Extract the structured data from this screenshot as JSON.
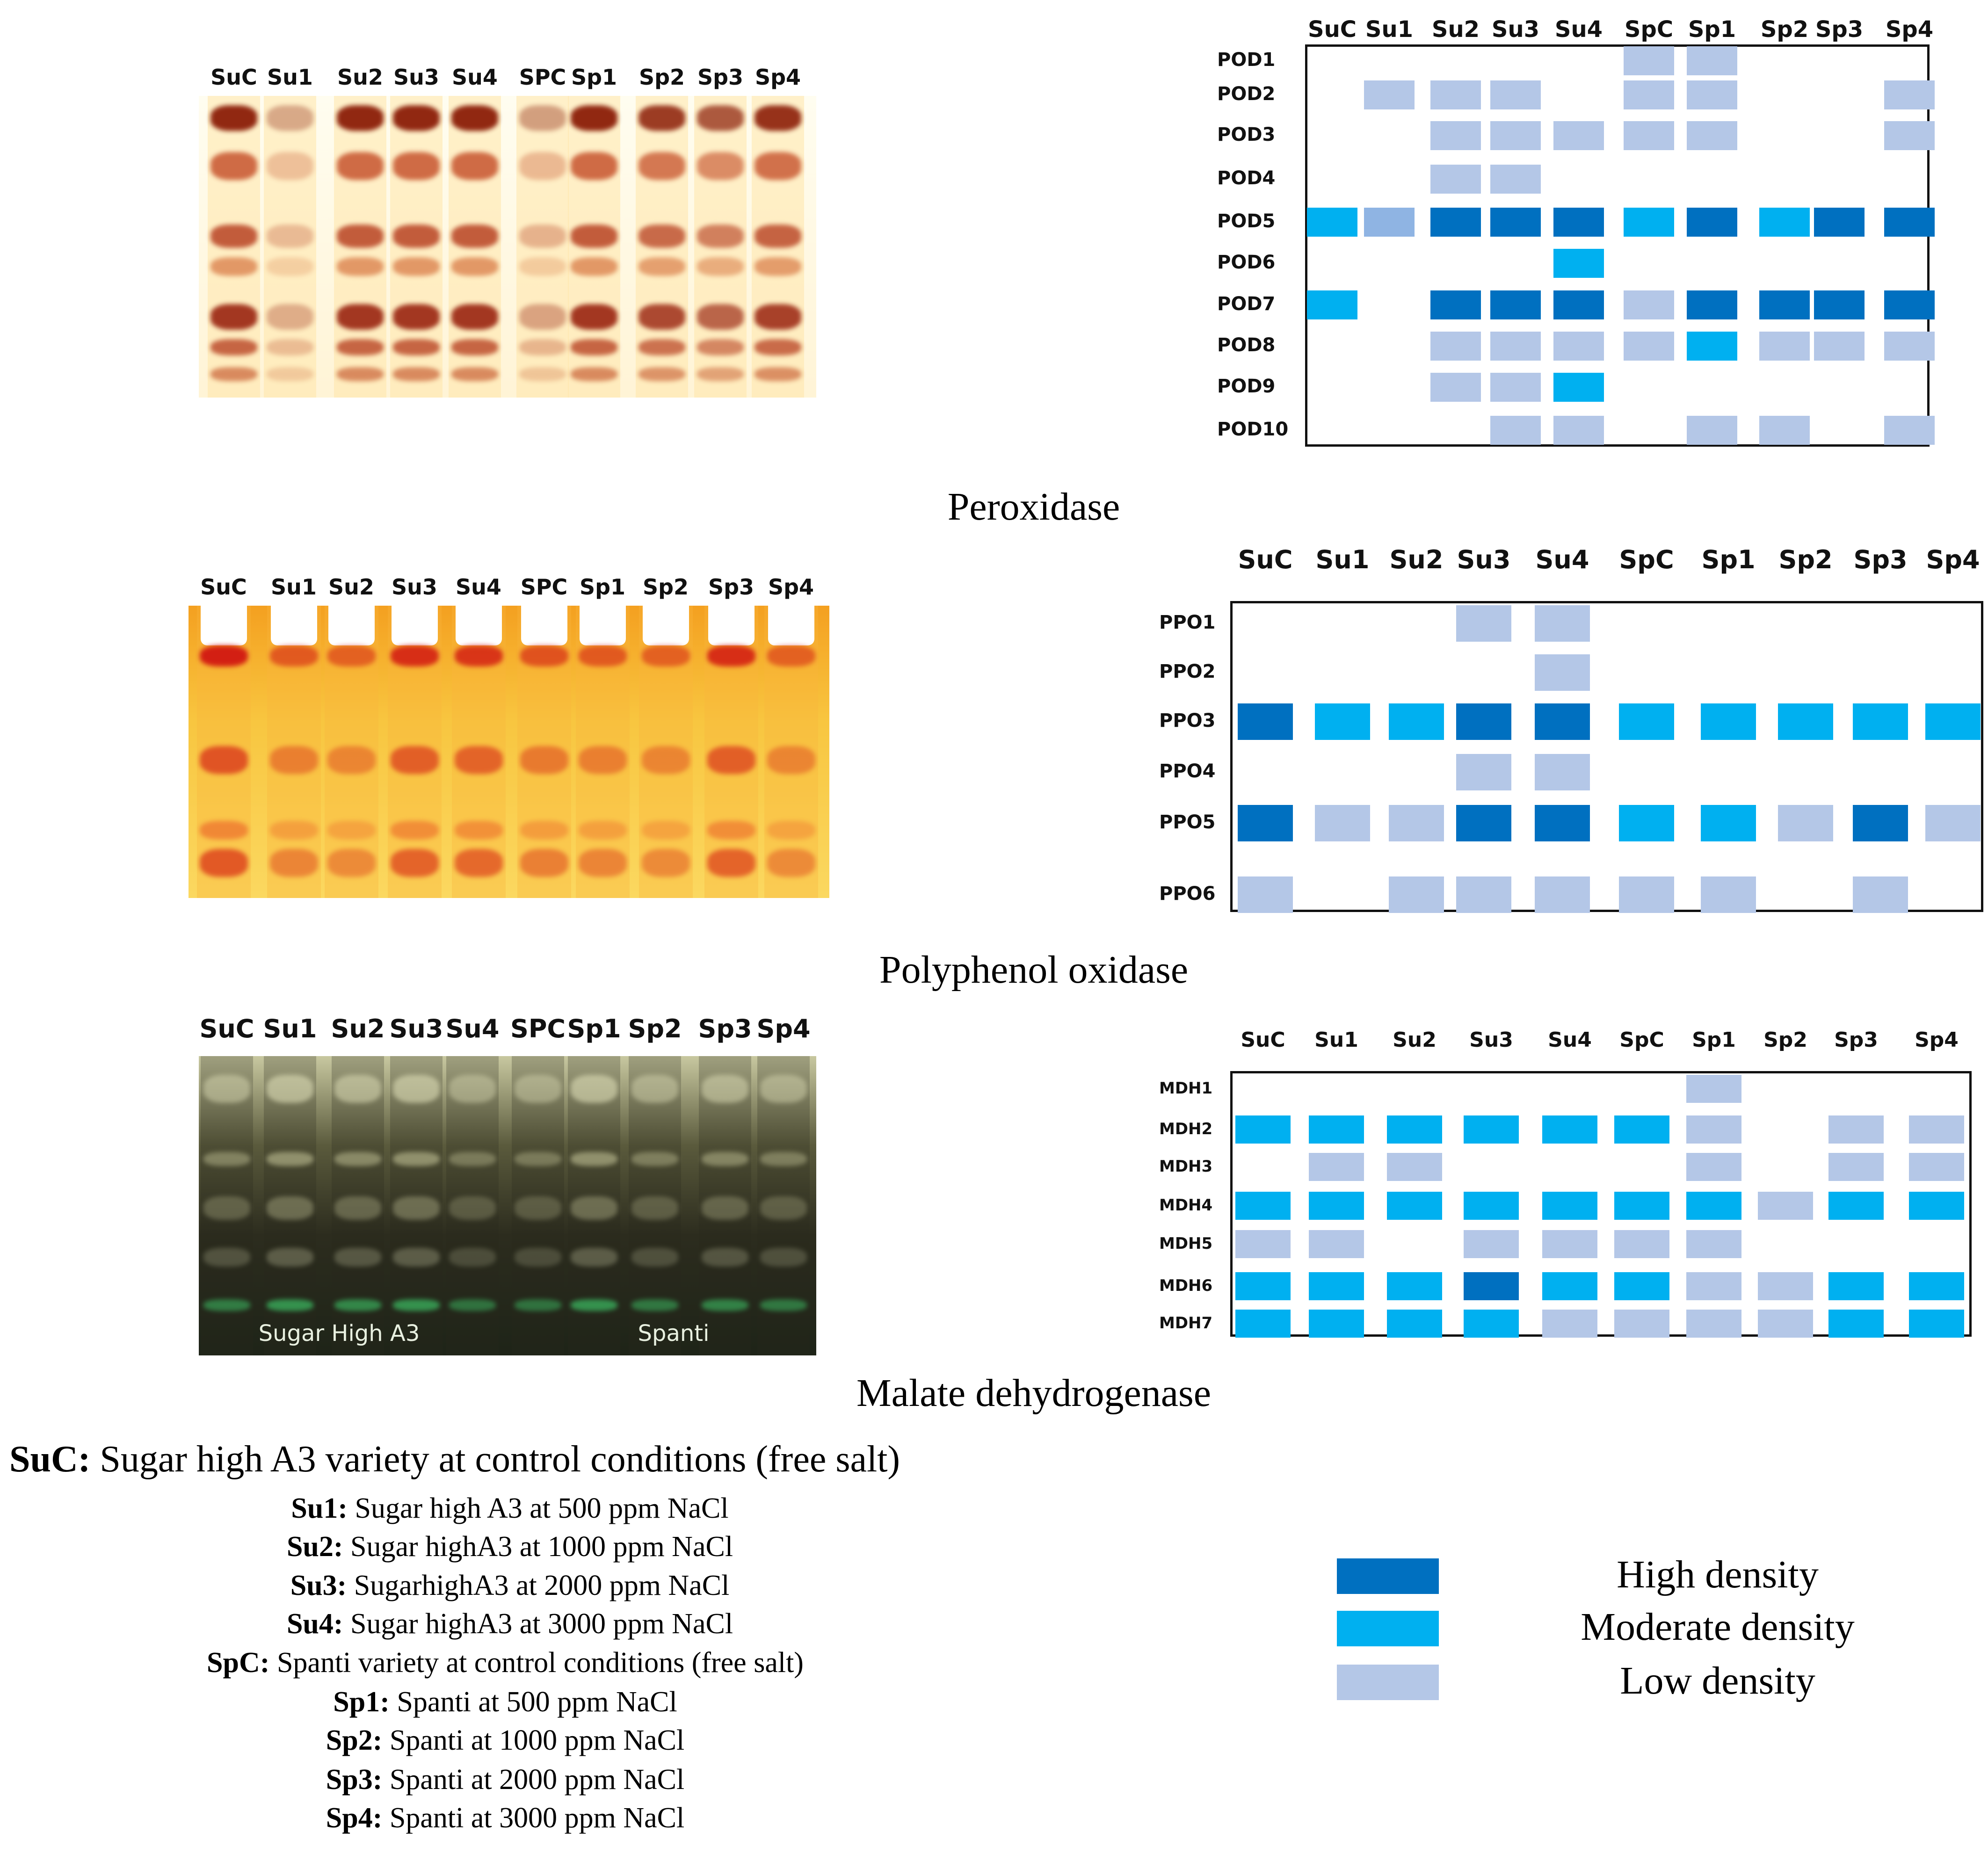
{
  "panels": [
    {
      "id": "pod",
      "caption": "Peroxidase",
      "gel_lanes": [
        "SuC",
        "Su1",
        "Su2",
        "Su3",
        "Su4",
        "SPC",
        "Sp1",
        "Sp2",
        "Sp3",
        "Sp4"
      ],
      "grid_columns": [
        "SuC",
        "Su1",
        "Su2",
        "Su3",
        "Su4",
        "SpC",
        "Sp1",
        "Sp2",
        "Sp3",
        "Sp4"
      ],
      "rows": [
        {
          "label": "POD1",
          "cells": [
            0,
            0,
            0,
            0,
            0,
            1,
            1,
            0,
            0,
            0
          ]
        },
        {
          "label": "POD2",
          "cells": [
            0,
            1,
            1,
            1,
            0,
            1,
            1,
            0,
            0,
            1
          ]
        },
        {
          "label": "POD3",
          "cells": [
            0,
            0,
            1,
            1,
            1,
            1,
            1,
            0,
            0,
            1
          ]
        },
        {
          "label": "POD4",
          "cells": [
            0,
            0,
            1,
            1,
            0,
            0,
            0,
            0,
            0,
            0
          ]
        },
        {
          "label": "POD5",
          "cells": [
            2,
            1,
            3,
            3,
            3,
            2,
            3,
            2,
            3,
            3
          ]
        },
        {
          "label": "POD6",
          "cells": [
            0,
            0,
            0,
            0,
            2,
            0,
            0,
            0,
            0,
            0
          ]
        },
        {
          "label": "POD7",
          "cells": [
            2,
            0,
            3,
            3,
            3,
            1,
            3,
            3,
            3,
            3
          ]
        },
        {
          "label": "POD8",
          "cells": [
            0,
            0,
            1,
            1,
            1,
            1,
            2,
            1,
            1,
            1
          ]
        },
        {
          "label": "POD9",
          "cells": [
            0,
            0,
            1,
            1,
            2,
            0,
            0,
            0,
            0,
            0
          ]
        },
        {
          "label": "POD10",
          "cells": [
            0,
            0,
            0,
            1,
            1,
            0,
            1,
            1,
            0,
            1
          ]
        }
      ]
    },
    {
      "id": "ppo",
      "caption": "Polyphenol oxidase",
      "gel_lanes": [
        "SuC",
        "Su1",
        "Su2",
        "Su3",
        "Su4",
        "SPC",
        "Sp1",
        "Sp2",
        "Sp3",
        "Sp4"
      ],
      "grid_columns": [
        "SuC",
        "Su1",
        "Su2",
        "Su3",
        "Su4",
        "SpC",
        "Sp1",
        "Sp2",
        "Sp3",
        "Sp4"
      ],
      "rows": [
        {
          "label": "PPO1",
          "cells": [
            0,
            0,
            0,
            1,
            1,
            0,
            0,
            0,
            0,
            0
          ]
        },
        {
          "label": "PPO2",
          "cells": [
            0,
            0,
            0,
            0,
            1,
            0,
            0,
            0,
            0,
            0
          ]
        },
        {
          "label": "PPO3",
          "cells": [
            3,
            2,
            2,
            3,
            3,
            2,
            2,
            2,
            2,
            2
          ]
        },
        {
          "label": "PPO4",
          "cells": [
            0,
            0,
            0,
            1,
            1,
            0,
            0,
            0,
            0,
            0
          ]
        },
        {
          "label": "PPO5",
          "cells": [
            3,
            1,
            1,
            3,
            3,
            2,
            2,
            1,
            3,
            1
          ]
        },
        {
          "label": "PPO6",
          "cells": [
            1,
            0,
            1,
            1,
            1,
            1,
            1,
            0,
            1,
            0
          ]
        }
      ]
    },
    {
      "id": "mdh",
      "caption": "Malate dehydrogenase",
      "gel_lanes": [
        "SuC",
        "Su1",
        "Su2",
        "Su3",
        "Su4",
        "SPC",
        "Sp1",
        "Sp2",
        "Sp3",
        "Sp4"
      ],
      "grid_columns": [
        "SuC",
        "Su1",
        "Su2",
        "Su3",
        "Su4",
        "SpC",
        "Sp1",
        "Sp2",
        "Sp3",
        "Sp4"
      ],
      "gel_annotations": [
        "Sugar High A3",
        "Spanti"
      ],
      "rows": [
        {
          "label": "MDH1",
          "cells": [
            0,
            0,
            0,
            0,
            0,
            0,
            1,
            0,
            0,
            0
          ]
        },
        {
          "label": "MDH2",
          "cells": [
            2,
            2,
            2,
            2,
            2,
            2,
            1,
            0,
            1,
            1
          ]
        },
        {
          "label": "MDH3",
          "cells": [
            0,
            1,
            1,
            0,
            0,
            0,
            1,
            0,
            1,
            1
          ]
        },
        {
          "label": "MDH4",
          "cells": [
            2,
            2,
            2,
            2,
            2,
            2,
            2,
            1,
            2,
            2
          ]
        },
        {
          "label": "MDH5",
          "cells": [
            1,
            1,
            0,
            1,
            1,
            1,
            1,
            0,
            0,
            0
          ]
        },
        {
          "label": "MDH6",
          "cells": [
            2,
            2,
            2,
            3,
            2,
            2,
            1,
            1,
            2,
            2
          ]
        },
        {
          "label": "MDH7",
          "cells": [
            2,
            2,
            2,
            2,
            1,
            1,
            1,
            1,
            2,
            2
          ]
        }
      ]
    }
  ],
  "legend": [
    {
      "level": 3,
      "label": "High density",
      "color": "#0070C0"
    },
    {
      "level": 2,
      "label": "Moderate density",
      "color": "#00B0F0"
    },
    {
      "level": 1,
      "label": "Low density",
      "color": "#B4C7E7"
    }
  ],
  "footnotes": [
    {
      "code": "SuC:",
      "text": " Sugar high A3 variety at control conditions (free salt)"
    },
    {
      "code": "Su1:",
      "text": " Sugar high A3 at 500 ppm NaCl"
    },
    {
      "code": "Su2:",
      "text": " Sugar highA3 at 1000 ppm NaCl"
    },
    {
      "code": "Su3:",
      "text": " SugarhighA3 at 2000 ppm NaCl"
    },
    {
      "code": "Su4:",
      "text": " Sugar highA3 at 3000 ppm NaCl"
    },
    {
      "code": "SpC:",
      "text": " Spanti variety at control conditions (free salt)"
    },
    {
      "code": "Sp1:",
      "text": " Spanti at 500 ppm NaCl"
    },
    {
      "code": "Sp2:",
      "text": " Spanti at 1000 ppm NaCl"
    },
    {
      "code": "Sp3:",
      "text": " Spanti at 2000 ppm NaCl"
    },
    {
      "code": "Sp4:",
      "text": " Spanti at 3000 ppm NaCl"
    }
  ],
  "colors": {
    "level_1": "#B4C7E7",
    "level_2": "#00B0F0",
    "level_3": "#0070C0",
    "pod_su1_pod5": "#8FB4E3"
  }
}
